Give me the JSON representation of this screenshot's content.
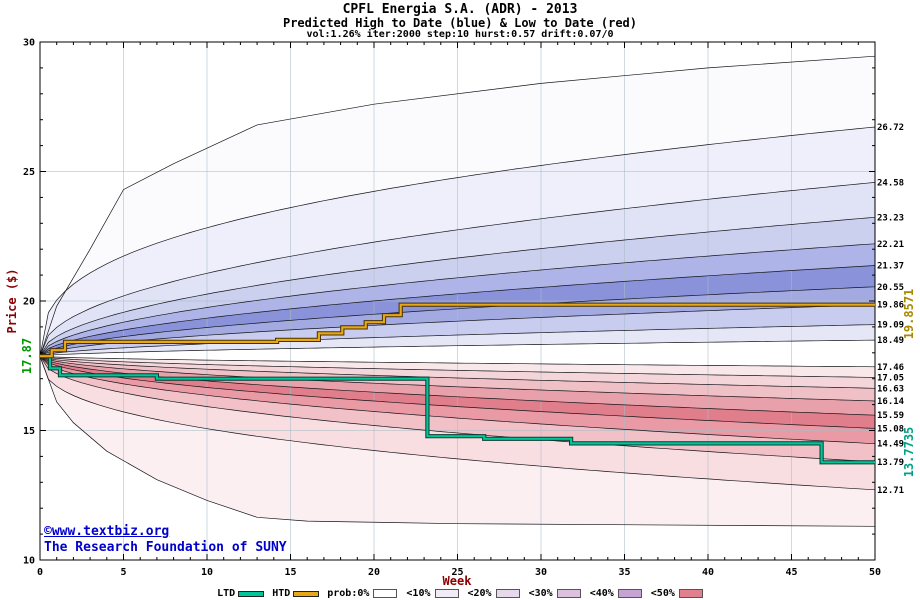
{
  "header": {
    "title": "CPFL Energia S.A. (ADR) - 2013",
    "subtitle": "Predicted High to Date (blue) &  Low to Date (red)",
    "params": "vol:1.26% iter:2000 step:10 hurst:0.57 drift:0.07/0"
  },
  "axes": {
    "x_label": "Week",
    "y_label": "Price ($)",
    "x_ticks": [
      0,
      5,
      10,
      15,
      20,
      25,
      30,
      35,
      40,
      45,
      50
    ],
    "y_ticks": [
      10,
      15,
      20,
      25,
      30
    ],
    "x_range": [
      0,
      50
    ],
    "y_range": [
      10,
      30
    ]
  },
  "annotations": {
    "start_price": "17.87",
    "htd_final": "19.8571",
    "ltd_final": "13.7735"
  },
  "watermark": {
    "line1": "©www.textbiz.org",
    "line2": "The Research Foundation of SUNY"
  },
  "legend": [
    {
      "label": "LTD",
      "type": "line",
      "color": "#00c49a"
    },
    {
      "label": "HTD",
      "type": "line",
      "color": "#e6a817"
    },
    {
      "label": "prob:0%",
      "type": "box",
      "color": "#ffffff"
    },
    {
      "label": "<10%",
      "type": "box",
      "color": "#f0ebf7"
    },
    {
      "label": "<20%",
      "type": "box",
      "color": "#e7d8ec"
    },
    {
      "label": "<30%",
      "type": "box",
      "color": "#dcc0de"
    },
    {
      "label": "<40%",
      "type": "box",
      "color": "#c9a2d4"
    },
    {
      "label": "<50%",
      "type": "box",
      "color": "#e2808f"
    }
  ],
  "chart_data": {
    "type": "area",
    "title": "CPFL Energia S.A. (ADR) - 2013",
    "subtitle": "Predicted High to Date (blue) &  Low to Date (red)",
    "xlabel": "Week",
    "ylabel": "Price ($)",
    "xlim": [
      0,
      50
    ],
    "ylim": [
      10,
      30
    ],
    "grid": true,
    "start": {
      "week": 0,
      "price": 17.87
    },
    "probability_levels": [
      "0%",
      "<10%",
      "<20%",
      "<30%",
      "<40%",
      "<50%"
    ],
    "high_contours": [
      {
        "label": null,
        "points": [
          [
            0,
            17.87
          ],
          [
            1,
            19.8
          ],
          [
            2,
            20.9
          ],
          [
            3,
            22.0
          ],
          [
            5,
            24.3
          ],
          [
            8,
            25.3
          ],
          [
            13,
            26.8
          ],
          [
            20,
            27.6
          ],
          [
            30,
            28.4
          ],
          [
            40,
            29.0
          ],
          [
            50,
            29.45
          ]
        ]
      },
      {
        "label": "26.72",
        "end": 26.72,
        "exp": 0.36
      },
      {
        "label": "24.58",
        "end": 24.58,
        "exp": 0.46
      },
      {
        "label": "23.23",
        "end": 23.23,
        "exp": 0.5
      },
      {
        "label": "22.21",
        "end": 22.21,
        "exp": 0.52
      },
      {
        "label": "21.37",
        "end": 21.37,
        "exp": 0.54
      },
      {
        "label": "20.55",
        "end": 20.55,
        "exp": 0.55
      },
      {
        "label": "19.86",
        "end": 19.86,
        "exp": 0.56
      },
      {
        "label": "19.09",
        "end": 19.09,
        "exp": 0.58
      },
      {
        "label": "18.49",
        "end": 18.49,
        "exp": 0.62
      }
    ],
    "high_band_colors": [
      "#fbfbfe",
      "#eeeffa",
      "#e0e2f5",
      "#ccd0ef",
      "#aeb4e7",
      "#8a93da",
      "#a2aae1",
      "#c8ccee",
      "#e5e7f6"
    ],
    "low_contours": [
      {
        "label": "17.46",
        "end": 17.46,
        "exp": 0.62
      },
      {
        "label": "17.05",
        "end": 17.05,
        "exp": 0.58
      },
      {
        "label": "16.63",
        "end": 16.63,
        "exp": 0.56
      },
      {
        "label": "16.14",
        "end": 16.14,
        "exp": 0.55
      },
      {
        "label": "15.59",
        "end": 15.59,
        "exp": 0.54
      },
      {
        "label": "15.08",
        "end": 15.08,
        "exp": 0.52
      },
      {
        "label": "14.49",
        "end": 14.49,
        "exp": 0.5
      },
      {
        "label": "13.79",
        "end": 13.79,
        "exp": 0.46
      },
      {
        "label": "12.71",
        "end": 12.71,
        "exp": 0.38
      },
      {
        "label": null,
        "points": [
          [
            0,
            17.87
          ],
          [
            1,
            16.1
          ],
          [
            2,
            15.3
          ],
          [
            4,
            14.2
          ],
          [
            7,
            13.1
          ],
          [
            10,
            12.3
          ],
          [
            13,
            11.65
          ],
          [
            16,
            11.5
          ],
          [
            25,
            11.4
          ],
          [
            50,
            11.3
          ]
        ]
      }
    ],
    "low_band_colors": [
      "#f8e8ea",
      "#f4d6da",
      "#efc0c6",
      "#e8a0aa",
      "#e07f8b",
      "#ea9aa4",
      "#f2c0c7",
      "#f8dde1",
      "#fbeff1"
    ],
    "htd_color": "#e6a817",
    "ltd_color": "#00c49a",
    "htd_steps": [
      [
        0,
        17.87
      ],
      [
        0.7,
        18.1
      ],
      [
        1.5,
        18.42
      ],
      [
        14.2,
        18.5
      ],
      [
        16.7,
        18.75
      ],
      [
        18.1,
        18.98
      ],
      [
        19.5,
        19.18
      ],
      [
        20.6,
        19.45
      ],
      [
        21.6,
        19.8571
      ],
      [
        50,
        19.8571
      ]
    ],
    "ltd_steps": [
      [
        0,
        17.87
      ],
      [
        0.6,
        17.4
      ],
      [
        1.2,
        17.13
      ],
      [
        7,
        17.0
      ],
      [
        23.2,
        14.78
      ],
      [
        26.6,
        14.68
      ],
      [
        31.8,
        14.5
      ],
      [
        46.8,
        13.7735
      ],
      [
        50,
        13.7735
      ]
    ]
  }
}
